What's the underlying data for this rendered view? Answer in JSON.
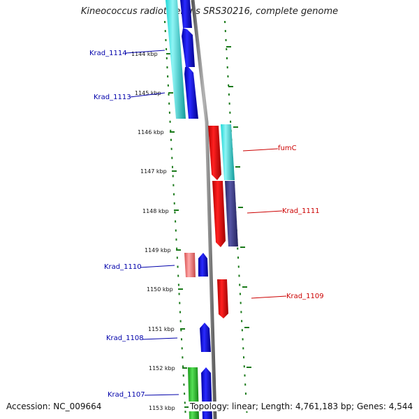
{
  "title": "Kineococcus radiotolerans SRS30216, complete genome",
  "footer": {
    "accession": "Accession: NC_009664",
    "summary": "Topology: linear; Length: 4,761,183 bp; Genes: 4,544"
  },
  "ticks": [
    {
      "label": "1144 kbp",
      "kbp": 1144
    },
    {
      "label": "1145 kbp",
      "kbp": 1145
    },
    {
      "label": "1146 kbp",
      "kbp": 1146
    },
    {
      "label": "1147 kbp",
      "kbp": 1147
    },
    {
      "label": "1148 kbp",
      "kbp": 1148
    },
    {
      "label": "1149 kbp",
      "kbp": 1149
    },
    {
      "label": "1150 kbp",
      "kbp": 1150
    },
    {
      "label": "1151 kbp",
      "kbp": 1151
    },
    {
      "label": "1152 kbp",
      "kbp": 1152
    },
    {
      "label": "1153 kbp",
      "kbp": 1153
    }
  ],
  "genes": [
    {
      "label": "Krad_1114",
      "strand": "reverse",
      "start_kbp": 1143.2,
      "end_kbp": 1145.7
    },
    {
      "label": "Krad_1113",
      "strand": "reverse",
      "start_kbp": 1144.3,
      "end_kbp": 1145.7
    },
    {
      "label": "fumC",
      "strand": "forward",
      "start_kbp": 1145.8,
      "end_kbp": 1147.2
    },
    {
      "label": "Krad_1111",
      "strand": "forward",
      "start_kbp": 1147.2,
      "end_kbp": 1148.9
    },
    {
      "label": "Krad_1110",
      "strand": "reverse",
      "start_kbp": 1149.1,
      "end_kbp": 1149.7
    },
    {
      "label": "Krad_1109",
      "strand": "forward",
      "start_kbp": 1149.8,
      "end_kbp": 1150.8
    },
    {
      "label": "Krad_1108",
      "strand": "reverse",
      "start_kbp": 1150.9,
      "end_kbp": 1151.6
    },
    {
      "label": "Krad_1107",
      "strand": "reverse",
      "start_kbp": 1152.2,
      "end_kbp": 1153.4
    }
  ],
  "colors": {
    "forward_label": "#cc0000",
    "reverse_label": "#0000aa",
    "backbone": "#808080",
    "tick": "#1a7a1a"
  }
}
